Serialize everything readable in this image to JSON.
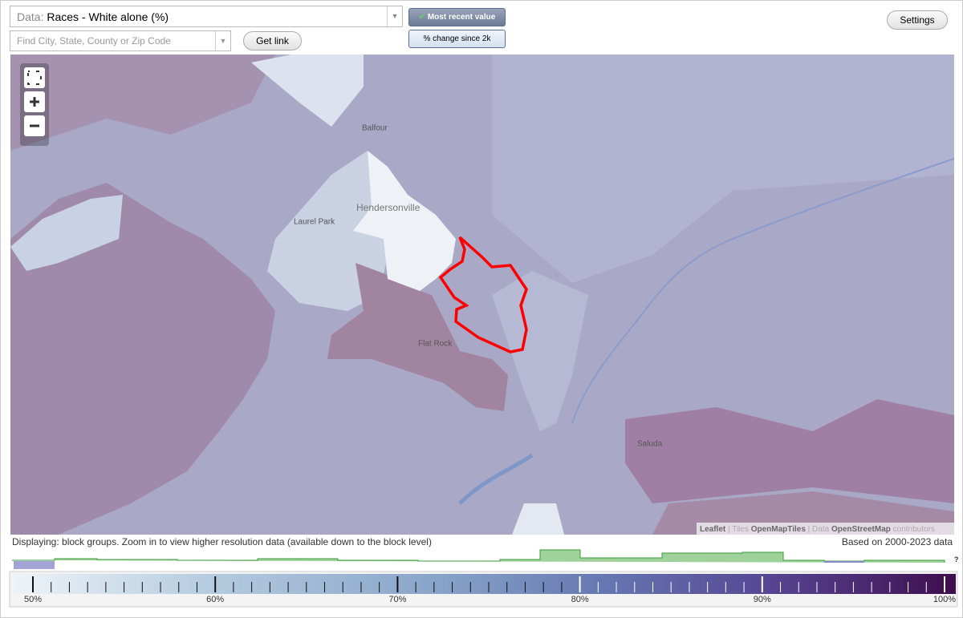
{
  "controls": {
    "data_label": "Data:",
    "data_value": "Races - White alone (%)",
    "search_placeholder": "Find City, State, County or Zip Code",
    "get_link": "Get link",
    "most_recent": "Most recent value",
    "percent_change": "% change since 2k",
    "settings": "Settings"
  },
  "map": {
    "places": [
      "Balfour",
      "Hendersonville",
      "Laurel Park",
      "Flat Rock",
      "Saluda"
    ],
    "attribution": [
      "Leaflet",
      " | Tiles ",
      "OpenMapTiles",
      " | Data ",
      "OpenStreetMap",
      " contributors"
    ]
  },
  "status": {
    "displaying": "Displaying: block groups. Zoom in to view higher resolution data (available down to the block level)",
    "based_on": "Based on 2000-2023 data"
  },
  "legend": {
    "labels": [
      "50%",
      "60%",
      "70%",
      "80%",
      "90%",
      "100%"
    ],
    "unknown": "?"
  }
}
